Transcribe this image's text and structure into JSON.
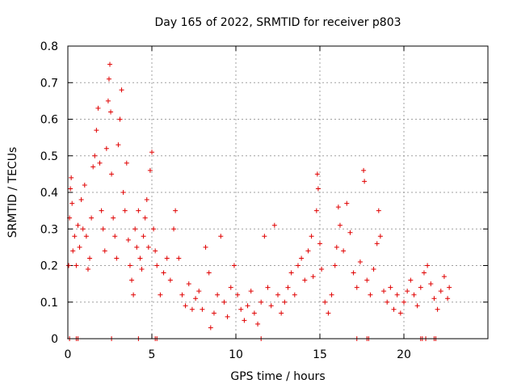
{
  "chart_data": {
    "type": "scatter",
    "title": "Day 165 of 2022, SRMTID for receiver p803",
    "xlabel": "GPS time / hours",
    "ylabel": "SRMTID / TECUs",
    "xlim": [
      0,
      25.0
    ],
    "ylim": [
      0,
      0.8
    ],
    "xticks": [
      0,
      5,
      10,
      15,
      20
    ],
    "xtick_labels": [
      "0",
      "5",
      "10",
      "15",
      "20"
    ],
    "yticks": [
      0,
      0.1,
      0.2,
      0.3,
      0.4,
      0.5,
      0.6,
      0.7,
      0.8
    ],
    "ytick_labels": [
      "0",
      "0.1",
      "0.2",
      "0.3",
      "0.4",
      "0.5",
      "0.6",
      "0.7",
      "0.8"
    ],
    "grid": true,
    "marker": "+",
    "marker_color": "#e00000",
    "series": [
      {
        "name": "SRMTID",
        "points": [
          [
            0.05,
            0.2
          ],
          [
            0.1,
            0.33
          ],
          [
            0.15,
            0.41
          ],
          [
            0.2,
            0.44
          ],
          [
            0.25,
            0.37
          ],
          [
            0.3,
            0.24
          ],
          [
            0.4,
            0.28
          ],
          [
            0.5,
            0.2
          ],
          [
            0.6,
            0.31
          ],
          [
            0.7,
            0.25
          ],
          [
            0.8,
            0.38
          ],
          [
            0.9,
            0.3
          ],
          [
            1.0,
            0.42
          ],
          [
            1.1,
            0.28
          ],
          [
            1.2,
            0.19
          ],
          [
            1.3,
            0.22
          ],
          [
            1.4,
            0.33
          ],
          [
            1.5,
            0.47
          ],
          [
            1.6,
            0.5
          ],
          [
            1.7,
            0.57
          ],
          [
            1.8,
            0.63
          ],
          [
            1.9,
            0.48
          ],
          [
            2.0,
            0.35
          ],
          [
            2.1,
            0.3
          ],
          [
            2.2,
            0.24
          ],
          [
            2.3,
            0.52
          ],
          [
            2.4,
            0.65
          ],
          [
            2.45,
            0.71
          ],
          [
            2.5,
            0.75
          ],
          [
            2.55,
            0.62
          ],
          [
            2.6,
            0.45
          ],
          [
            2.7,
            0.33
          ],
          [
            2.8,
            0.28
          ],
          [
            2.9,
            0.22
          ],
          [
            3.0,
            0.53
          ],
          [
            3.1,
            0.6
          ],
          [
            3.2,
            0.68
          ],
          [
            3.3,
            0.4
          ],
          [
            3.4,
            0.35
          ],
          [
            3.5,
            0.48
          ],
          [
            3.6,
            0.27
          ],
          [
            3.7,
            0.2
          ],
          [
            3.8,
            0.16
          ],
          [
            3.9,
            0.12
          ],
          [
            4.0,
            0.3
          ],
          [
            4.1,
            0.25
          ],
          [
            4.2,
            0.35
          ],
          [
            4.3,
            0.22
          ],
          [
            4.4,
            0.19
          ],
          [
            4.5,
            0.28
          ],
          [
            4.6,
            0.33
          ],
          [
            4.7,
            0.38
          ],
          [
            4.8,
            0.25
          ],
          [
            4.9,
            0.46
          ],
          [
            5.0,
            0.51
          ],
          [
            5.1,
            0.3
          ],
          [
            5.2,
            0.24
          ],
          [
            5.3,
            0.2
          ],
          [
            5.5,
            0.12
          ],
          [
            5.7,
            0.18
          ],
          [
            5.9,
            0.22
          ],
          [
            6.1,
            0.16
          ],
          [
            6.3,
            0.3
          ],
          [
            6.4,
            0.35
          ],
          [
            6.6,
            0.22
          ],
          [
            6.8,
            0.12
          ],
          [
            7.0,
            0.09
          ],
          [
            7.2,
            0.15
          ],
          [
            7.4,
            0.08
          ],
          [
            7.6,
            0.11
          ],
          [
            7.8,
            0.13
          ],
          [
            8.0,
            0.08
          ],
          [
            8.2,
            0.25
          ],
          [
            8.4,
            0.18
          ],
          [
            8.5,
            0.03
          ],
          [
            8.7,
            0.07
          ],
          [
            8.9,
            0.12
          ],
          [
            9.1,
            0.28
          ],
          [
            9.3,
            0.1
          ],
          [
            9.5,
            0.06
          ],
          [
            9.7,
            0.14
          ],
          [
            9.9,
            0.2
          ],
          [
            10.1,
            0.12
          ],
          [
            10.3,
            0.08
          ],
          [
            10.5,
            0.05
          ],
          [
            10.7,
            0.09
          ],
          [
            10.9,
            0.13
          ],
          [
            11.1,
            0.07
          ],
          [
            11.3,
            0.04
          ],
          [
            11.5,
            0.1
          ],
          [
            11.7,
            0.28
          ],
          [
            11.9,
            0.14
          ],
          [
            12.1,
            0.09
          ],
          [
            12.3,
            0.31
          ],
          [
            12.5,
            0.12
          ],
          [
            12.7,
            0.07
          ],
          [
            12.9,
            0.1
          ],
          [
            13.1,
            0.14
          ],
          [
            13.3,
            0.18
          ],
          [
            13.5,
            0.12
          ],
          [
            13.7,
            0.2
          ],
          [
            13.9,
            0.22
          ],
          [
            14.1,
            0.16
          ],
          [
            14.3,
            0.24
          ],
          [
            14.5,
            0.28
          ],
          [
            14.6,
            0.17
          ],
          [
            14.8,
            0.35
          ],
          [
            14.85,
            0.45
          ],
          [
            14.9,
            0.41
          ],
          [
            15.0,
            0.26
          ],
          [
            15.1,
            0.19
          ],
          [
            15.3,
            0.1
          ],
          [
            15.5,
            0.07
          ],
          [
            15.7,
            0.12
          ],
          [
            15.9,
            0.2
          ],
          [
            16.0,
            0.25
          ],
          [
            16.1,
            0.36
          ],
          [
            16.2,
            0.31
          ],
          [
            16.4,
            0.24
          ],
          [
            16.6,
            0.37
          ],
          [
            16.8,
            0.29
          ],
          [
            17.0,
            0.18
          ],
          [
            17.2,
            0.14
          ],
          [
            17.4,
            0.21
          ],
          [
            17.6,
            0.46
          ],
          [
            17.65,
            0.43
          ],
          [
            17.8,
            0.16
          ],
          [
            18.0,
            0.12
          ],
          [
            18.2,
            0.19
          ],
          [
            18.4,
            0.26
          ],
          [
            18.5,
            0.35
          ],
          [
            18.6,
            0.28
          ],
          [
            18.8,
            0.13
          ],
          [
            19.0,
            0.1
          ],
          [
            19.2,
            0.14
          ],
          [
            19.4,
            0.08
          ],
          [
            19.6,
            0.12
          ],
          [
            19.8,
            0.07
          ],
          [
            20.0,
            0.1
          ],
          [
            20.2,
            0.13
          ],
          [
            20.4,
            0.16
          ],
          [
            20.6,
            0.12
          ],
          [
            20.8,
            0.09
          ],
          [
            21.0,
            0.14
          ],
          [
            21.2,
            0.18
          ],
          [
            21.4,
            0.2
          ],
          [
            21.6,
            0.15
          ],
          [
            21.8,
            0.11
          ],
          [
            22.0,
            0.08
          ],
          [
            22.2,
            0.13
          ],
          [
            22.4,
            0.17
          ],
          [
            22.6,
            0.11
          ],
          [
            22.7,
            0.14
          ]
        ]
      }
    ],
    "zero_points_x": [
      0.1,
      0.5,
      0.6,
      2.6,
      4.2,
      5.2,
      5.3,
      11.5,
      17.2,
      17.8,
      17.9,
      21.0,
      21.1,
      21.3,
      21.8,
      21.9
    ]
  }
}
